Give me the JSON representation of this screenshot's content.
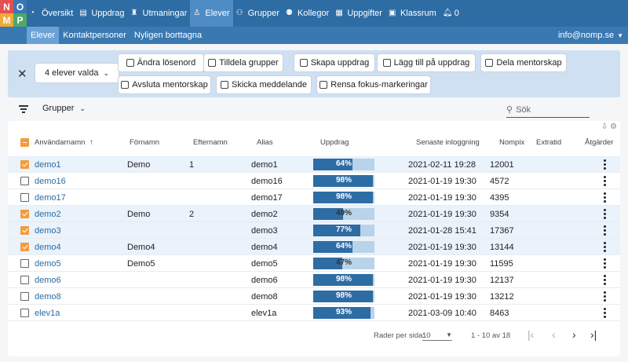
{
  "logo": {
    "letters": [
      "N",
      "O",
      "M",
      "P"
    ],
    "colors": [
      "#e3504f",
      "#3a78b2",
      "#f0a93b",
      "#4ca86a"
    ]
  },
  "nav": {
    "items": [
      {
        "label": "Översikt",
        "icon": "gauge-icon"
      },
      {
        "label": "Uppdrag",
        "icon": "document-icon"
      },
      {
        "label": "Utmaningar",
        "icon": "trophy-icon"
      },
      {
        "label": "Elever",
        "icon": "person-icon",
        "active": true
      },
      {
        "label": "Grupper",
        "icon": "group-icon"
      },
      {
        "label": "Kollegor",
        "icon": "people-icon"
      },
      {
        "label": "Uppgifter",
        "icon": "grid-icon"
      },
      {
        "label": "Klassrum",
        "icon": "classroom-icon"
      },
      {
        "label": "0",
        "icon": "bell-icon"
      }
    ]
  },
  "subnav": {
    "items": [
      "Elever",
      "Kontaktpersoner",
      "Nyligen borttagna"
    ],
    "user_email": "info@nomp.se"
  },
  "selection": {
    "count_label": "4 elever valda",
    "actions": [
      {
        "label": "Ändra lösenord",
        "icon": "key-icon"
      },
      {
        "label": "Tilldela grupper",
        "icon": "group-icon"
      },
      {
        "label": "Skapa uppdrag",
        "icon": "document-icon"
      },
      {
        "label": "Lägg till på uppdrag",
        "icon": "document-icon"
      },
      {
        "label": "Dela mentorskap",
        "icon": "people-icon"
      },
      {
        "label": "Avsluta mentorskap",
        "icon": "trash-icon"
      },
      {
        "label": "Skicka meddelande",
        "icon": "mail-icon"
      },
      {
        "label": "Rensa fokus-markeringar",
        "icon": "eraser-icon"
      }
    ]
  },
  "filters": {
    "groups_label": "Grupper",
    "search_placeholder": "Sök"
  },
  "table": {
    "headers": [
      "Användarnamn",
      "Förnamn",
      "Efternamn",
      "Alias",
      "Uppdrag",
      "Senaste inloggning",
      "Nompix",
      "Extratid",
      "Åtgärder"
    ],
    "rows": [
      {
        "username": "demo1",
        "first": "Demo",
        "last": "1",
        "alias": "demo1",
        "progress": 64,
        "last_login": "2021-02-11 19:28",
        "nompix": "12001",
        "selected": true
      },
      {
        "username": "demo16",
        "first": "",
        "last": "",
        "alias": "demo16",
        "progress": 98,
        "last_login": "2021-01-19 19:30",
        "nompix": "4572",
        "selected": false
      },
      {
        "username": "demo17",
        "first": "",
        "last": "",
        "alias": "demo17",
        "progress": 98,
        "last_login": "2021-01-19 19:30",
        "nompix": "4395",
        "selected": false
      },
      {
        "username": "demo2",
        "first": "Demo",
        "last": "2",
        "alias": "demo2",
        "progress": 49,
        "last_login": "2021-01-19 19:30",
        "nompix": "9354",
        "selected": true
      },
      {
        "username": "demo3",
        "first": "",
        "last": "",
        "alias": "demo3",
        "progress": 77,
        "last_login": "2021-01-28 15:41",
        "nompix": "17367",
        "selected": true
      },
      {
        "username": "demo4",
        "first": "Demo4",
        "last": "",
        "alias": "demo4",
        "progress": 64,
        "last_login": "2021-01-19 19:30",
        "nompix": "13144",
        "selected": true
      },
      {
        "username": "demo5",
        "first": "Demo5",
        "last": "",
        "alias": "demo5",
        "progress": 47,
        "last_login": "2021-01-19 19:30",
        "nompix": "11595",
        "selected": false
      },
      {
        "username": "demo6",
        "first": "",
        "last": "",
        "alias": "demo6",
        "progress": 98,
        "last_login": "2021-01-19 19:30",
        "nompix": "12137",
        "selected": false
      },
      {
        "username": "demo8",
        "first": "",
        "last": "",
        "alias": "demo8",
        "progress": 98,
        "last_login": "2021-01-19 19:30",
        "nompix": "13212",
        "selected": false
      },
      {
        "username": "elev1a",
        "first": "",
        "last": "",
        "alias": "elev1a",
        "progress": 93,
        "last_login": "2021-03-09 10:40",
        "nompix": "8463",
        "selected": false
      }
    ]
  },
  "pagination": {
    "rows_label": "Rader per sida:",
    "rows_value": "10",
    "range": "1 - 10 av 18"
  }
}
